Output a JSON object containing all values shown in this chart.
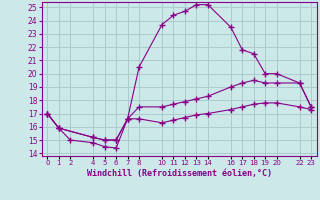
{
  "xlabel": "Windchill (Refroidissement éolien,°C)",
  "bg_color": "#cce8e8",
  "grid_color": "#aacccc",
  "line_color": "#880088",
  "ylim": [
    13.8,
    25.4
  ],
  "xlim": [
    -0.5,
    23.5
  ],
  "yticks": [
    14,
    15,
    16,
    17,
    18,
    19,
    20,
    21,
    22,
    23,
    24,
    25
  ],
  "xtick_positions": [
    0,
    1,
    2,
    4,
    5,
    6,
    7,
    8,
    10,
    11,
    12,
    13,
    14,
    16,
    17,
    18,
    19,
    20,
    22,
    23
  ],
  "xtick_labels": [
    "0",
    "1",
    "2",
    "4",
    "5",
    "6",
    "7",
    "8",
    "10",
    "11",
    "12",
    "13",
    "14",
    "16",
    "17",
    "18",
    "19",
    "20",
    "22",
    "23"
  ],
  "line1_x": [
    0,
    1,
    2,
    4,
    5,
    6,
    7,
    8,
    10,
    11,
    12,
    13,
    14,
    16,
    17,
    18,
    19,
    20,
    22,
    23
  ],
  "line1_y": [
    17.0,
    15.9,
    15.0,
    14.8,
    14.5,
    14.4,
    16.6,
    20.5,
    23.7,
    24.4,
    24.7,
    25.2,
    25.2,
    23.5,
    21.8,
    21.5,
    20.0,
    20.0,
    19.3,
    17.5
  ],
  "line2_x": [
    0,
    1,
    4,
    5,
    6,
    7,
    8,
    10,
    11,
    12,
    13,
    14,
    16,
    17,
    18,
    19,
    20,
    22,
    23
  ],
  "line2_y": [
    17.0,
    15.9,
    15.2,
    15.0,
    15.0,
    16.6,
    17.5,
    17.5,
    17.7,
    17.9,
    18.1,
    18.3,
    19.0,
    19.3,
    19.5,
    19.3,
    19.3,
    19.3,
    17.5
  ],
  "line3_x": [
    0,
    1,
    4,
    5,
    6,
    7,
    8,
    10,
    11,
    12,
    13,
    14,
    16,
    17,
    18,
    19,
    20,
    22,
    23
  ],
  "line3_y": [
    17.0,
    15.9,
    15.2,
    15.0,
    15.0,
    16.6,
    16.6,
    16.3,
    16.5,
    16.7,
    16.9,
    17.0,
    17.3,
    17.5,
    17.7,
    17.8,
    17.8,
    17.5,
    17.3
  ]
}
